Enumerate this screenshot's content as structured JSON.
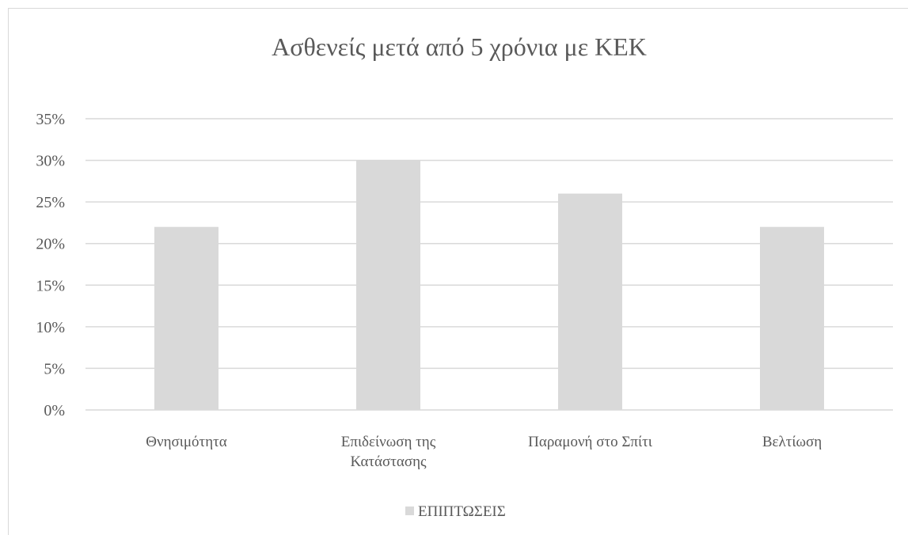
{
  "chart_data": {
    "type": "bar",
    "title": "Ασθενείς μετά από 5 χρόνια με ΚΕΚ",
    "categories": [
      "Θνησιμότητα",
      "Επιδείνωση της Κατάστασης",
      "Παραμονή στο Σπίτι",
      "Βελτίωση"
    ],
    "category_lines": [
      [
        "Θνησιμότητα"
      ],
      [
        "Επιδείνωση της",
        "Κατάστασης"
      ],
      [
        "Παραμονή στο Σπίτι"
      ],
      [
        "Βελτίωση"
      ]
    ],
    "series": [
      {
        "name": "ΕΠΙΠΤΩΣΕΙΣ",
        "values": [
          22,
          30,
          26,
          22
        ],
        "color": "#d9d9d9"
      }
    ],
    "ylim": [
      0,
      35
    ],
    "yticks": [
      0,
      5,
      10,
      15,
      20,
      25,
      30,
      35
    ],
    "ytick_labels": [
      "0%",
      "5%",
      "10%",
      "15%",
      "20%",
      "25%",
      "30%",
      "35%"
    ],
    "grid": true,
    "gridline_color": "#d9d9d9",
    "text_color": "#595959",
    "legend": "bottom"
  }
}
